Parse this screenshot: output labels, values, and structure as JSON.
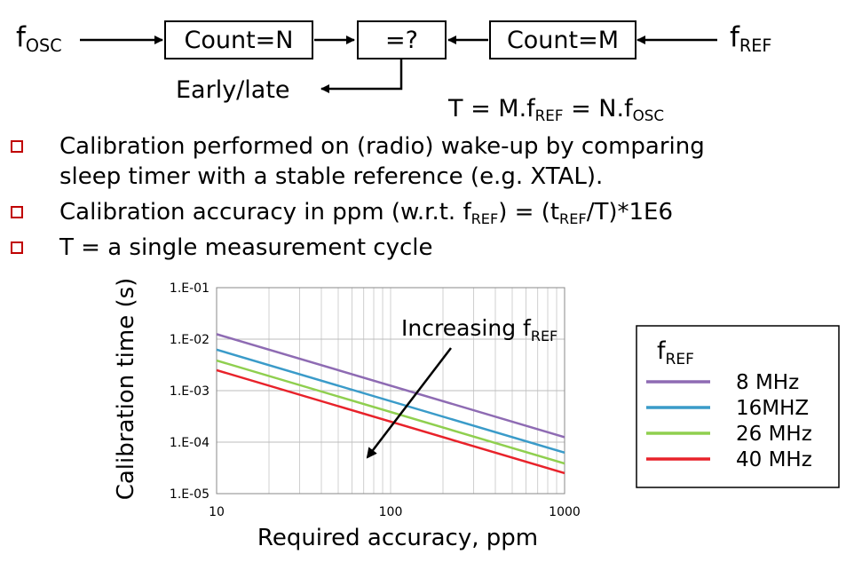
{
  "block_diagram": {
    "f_osc": {
      "main": "f",
      "sub": "OSC"
    },
    "f_ref": {
      "main": "f",
      "sub": "REF"
    },
    "count_n_label": "Count=N",
    "compare_label": "=?",
    "count_m_label": "Count=M",
    "early_late_label": "Early/late",
    "equation": {
      "part1": "T = M.f",
      "sub1": "REF",
      "part2": " = N.f",
      "sub2": "OSC"
    }
  },
  "bullets": [
    {
      "line1": "Calibration performed on (radio) wake-up by comparing",
      "line2": "sleep timer with a stable reference (e.g. XTAL)."
    },
    {
      "pre": "Calibration accuracy in ppm (w.r.t. f",
      "sub1": "REF",
      "mid": ") = (t",
      "sub2": "REF",
      "post": "/T)*1E6"
    },
    {
      "text": "T = a single measurement cycle"
    }
  ],
  "chart_data": {
    "type": "line",
    "xlabel": "Required accuracy, ppm",
    "ylabel": "Calibration time (s)",
    "x_scale": "log",
    "y_scale": "log",
    "xlim": [
      10,
      1000
    ],
    "ylim": [
      1e-05,
      0.1
    ],
    "x_ticks": [
      "10",
      "100",
      "1000"
    ],
    "y_ticks": [
      "1.E-05",
      "1.E-04",
      "1.E-03",
      "1.E-02",
      "1.E-01"
    ],
    "grid": true,
    "annotation": {
      "text": "Increasing f",
      "sub": "REF"
    },
    "legend": {
      "title_main": "f",
      "title_sub": "REF",
      "position": "right"
    },
    "x": [
      10,
      1000
    ],
    "series": [
      {
        "name": "8 MHz",
        "color": "#8e6bb3",
        "values": [
          0.0125,
          0.000125
        ]
      },
      {
        "name": "16MHZ",
        "color": "#3a9bc9",
        "values": [
          0.00625,
          6.25e-05
        ]
      },
      {
        "name": "26 MHz",
        "color": "#8fcf4f",
        "values": [
          0.00385,
          3.85e-05
        ]
      },
      {
        "name": "40 MHz",
        "color": "#e8222a",
        "values": [
          0.0025,
          2.5e-05
        ]
      }
    ]
  }
}
